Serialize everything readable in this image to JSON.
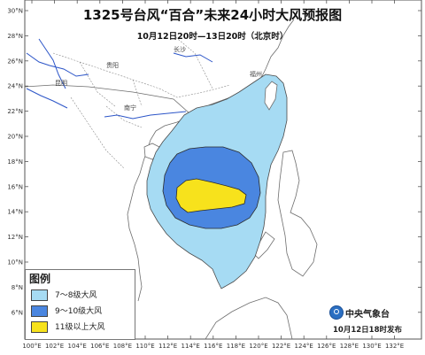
{
  "title": "1325号台风“百合”未来24小时大风预报图",
  "subtitle": "10月12日20时—13日20时（北京时）",
  "colors": {
    "sea": "#ffffff",
    "land": "#ffffff",
    "coast": "#6d6d6d",
    "river": "#2c55c8",
    "wind_7_8": "#a6dbf3",
    "wind_9_10": "#4a86e0",
    "wind_11_plus": "#f7e21c",
    "outline": "#4a4a4a"
  },
  "axes": {
    "lon_labels": [
      "100°E",
      "102°E",
      "104°E",
      "106°E",
      "108°E",
      "110°E",
      "112°E",
      "114°E",
      "116°E",
      "118°E",
      "120°E",
      "122°E",
      "124°E",
      "126°E",
      "128°E",
      "130°E",
      "132°E"
    ],
    "lat_labels": [
      "30°N",
      "28°N",
      "26°N",
      "24°N",
      "22°N",
      "20°N",
      "18°N",
      "16°N",
      "14°N",
      "12°N",
      "10°N",
      "8°N",
      "6°N"
    ]
  },
  "cities": [
    "贵阳",
    "昆明",
    "南宁",
    "长沙",
    "福州"
  ],
  "legend": {
    "title": "图例",
    "items": [
      {
        "label": "7～8级大风",
        "color": "#a6dbf3"
      },
      {
        "label": "9～10级大风",
        "color": "#4a86e0"
      },
      {
        "label": "11级以上大风",
        "color": "#f7e21c"
      }
    ]
  },
  "footer": {
    "agency": "中央气象台",
    "issued": "10月12日18时发布",
    "logo_icon": "cma-globe-icon"
  }
}
